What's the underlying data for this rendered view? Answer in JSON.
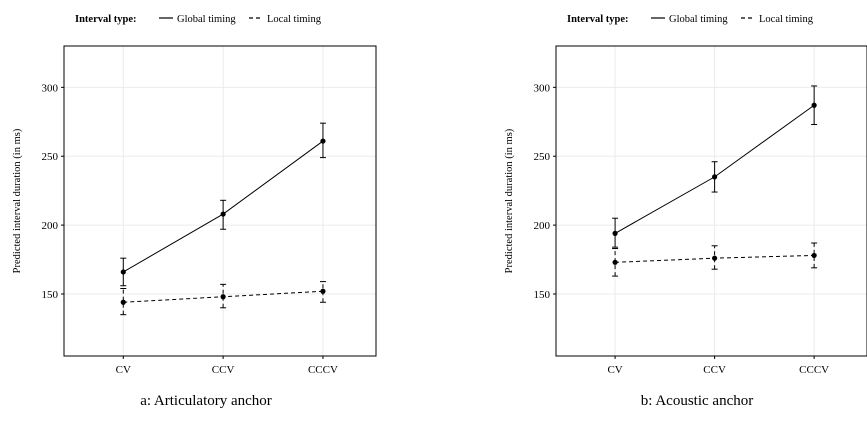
{
  "legend": {
    "title": "Interval type:",
    "global_label": "Global timing",
    "local_label": "Local timing"
  },
  "chart_data": [
    {
      "type": "line",
      "caption": "a: Articulatory anchor",
      "ylabel": "Predicted interval duration (in ms)",
      "xlabel": "",
      "categories": [
        "CV",
        "CCV",
        "CCCV"
      ],
      "ylim": [
        105,
        330
      ],
      "yticks": [
        150,
        200,
        250,
        300
      ],
      "grid": true,
      "legend_position": "top",
      "series": [
        {
          "name": "Global timing",
          "style": "solid",
          "values": [
            166,
            208,
            261
          ],
          "err_low": [
            156,
            197,
            249
          ],
          "err_high": [
            176,
            218,
            274
          ]
        },
        {
          "name": "Local timing",
          "style": "dashed",
          "values": [
            144,
            148,
            152
          ],
          "err_low": [
            135,
            140,
            144
          ],
          "err_high": [
            154,
            157,
            159
          ]
        }
      ]
    },
    {
      "type": "line",
      "caption": "b: Acoustic anchor",
      "ylabel": "Predicted interval duration (in ms)",
      "xlabel": "",
      "categories": [
        "CV",
        "CCV",
        "CCCV"
      ],
      "ylim": [
        105,
        330
      ],
      "yticks": [
        150,
        200,
        250,
        300
      ],
      "grid": true,
      "legend_position": "top",
      "series": [
        {
          "name": "Global timing",
          "style": "solid",
          "values": [
            194,
            235,
            287
          ],
          "err_low": [
            184,
            224,
            273
          ],
          "err_high": [
            205,
            246,
            301
          ]
        },
        {
          "name": "Local timing",
          "style": "dashed",
          "values": [
            173,
            176,
            178
          ],
          "err_low": [
            163,
            168,
            169
          ],
          "err_high": [
            183,
            185,
            187
          ]
        }
      ]
    }
  ]
}
